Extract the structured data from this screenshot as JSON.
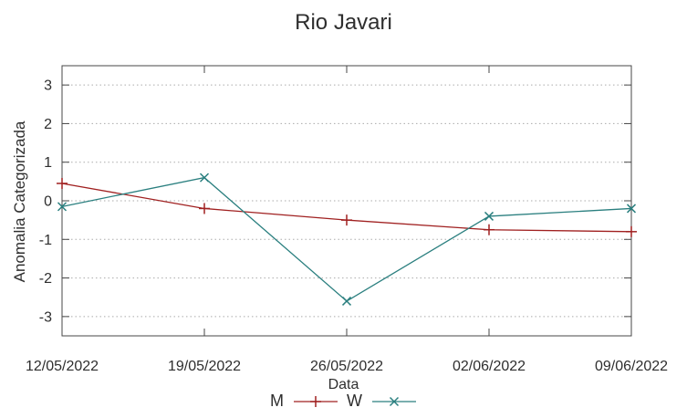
{
  "chart_data": {
    "type": "line",
    "title": "Rio Javari",
    "xlabel": "Data",
    "ylabel": "Anomalia Categorizada",
    "categories": [
      "12/05/2022",
      "19/05/2022",
      "26/05/2022",
      "02/06/2022",
      "09/06/2022"
    ],
    "series": [
      {
        "name": "M",
        "color": "#a02020",
        "marker": "plus",
        "values": [
          0.45,
          -0.2,
          -0.5,
          -0.75,
          -0.8
        ]
      },
      {
        "name": "W",
        "color": "#2a7f7f",
        "marker": "cross",
        "values": [
          -0.15,
          0.6,
          -2.6,
          -0.4,
          -0.2
        ]
      }
    ],
    "ylim": [
      -3.5,
      3.5
    ],
    "yticks": [
      3,
      2,
      1,
      0,
      -1,
      -2,
      -3
    ],
    "grid": true,
    "legend_position": "bottom-center"
  },
  "style": {
    "border_color": "#474747",
    "grid_color": "#ababab",
    "text_color": "#2e2e2e",
    "background": "#ffffff"
  }
}
